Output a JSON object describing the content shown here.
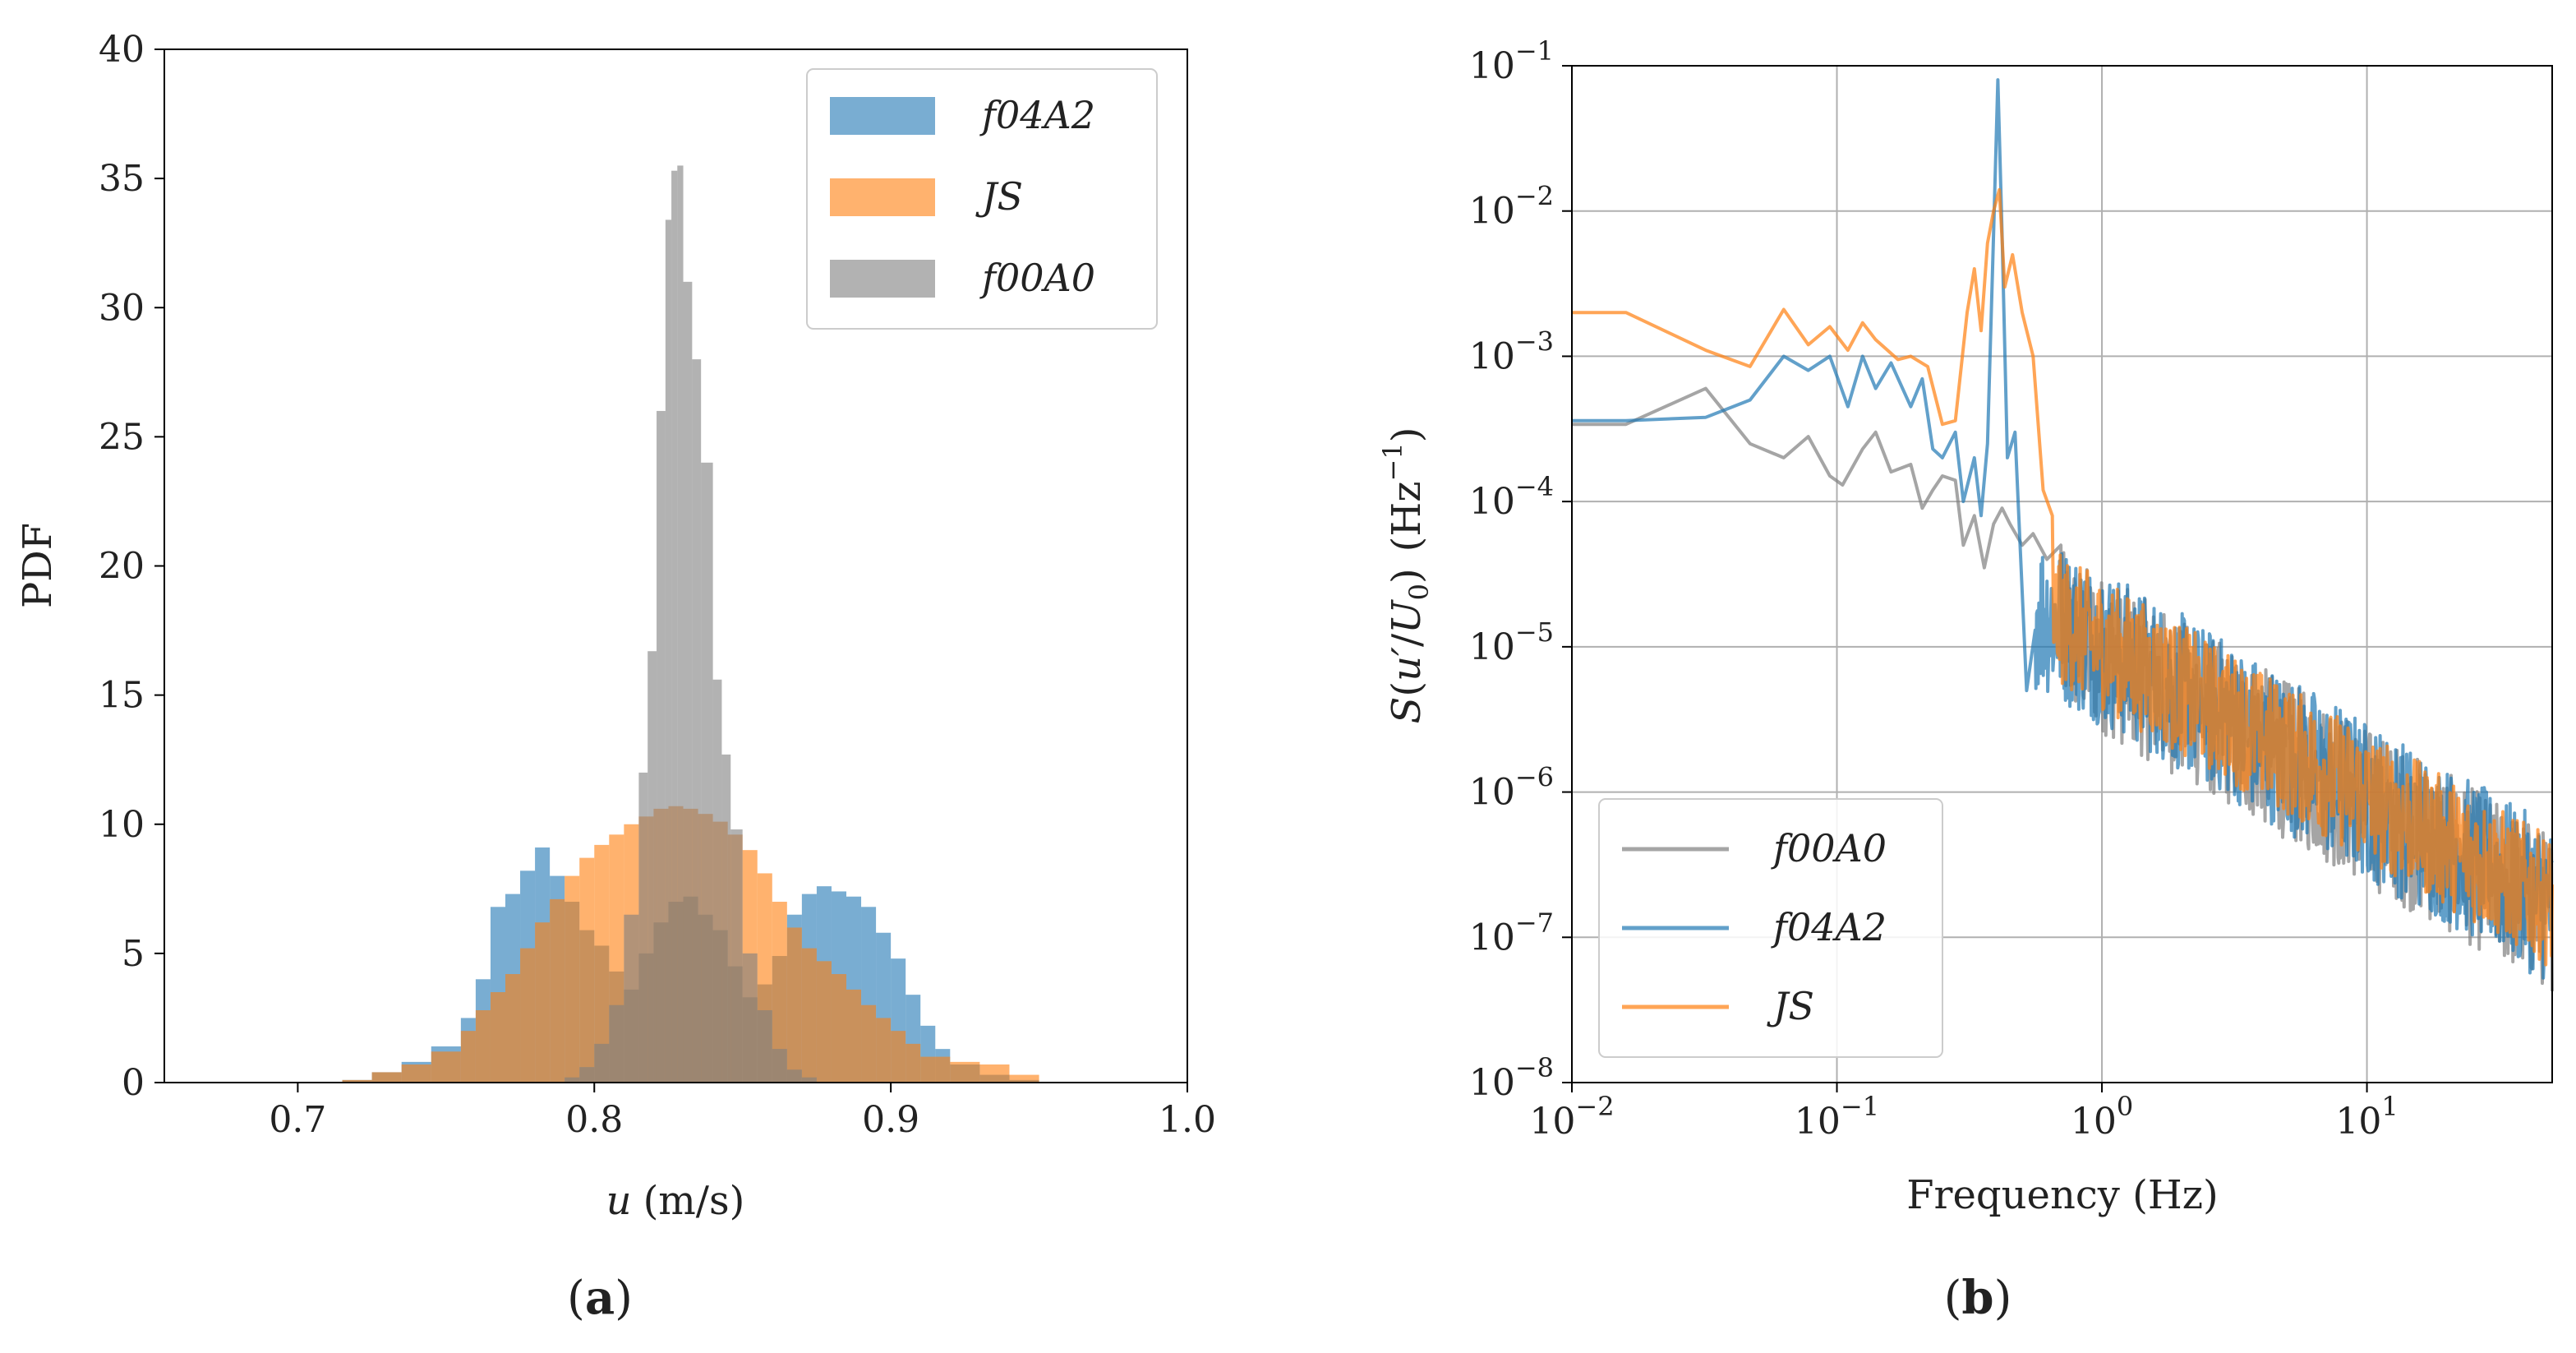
{
  "chart_data": [
    {
      "panel_label": "a",
      "type": "histogram",
      "xlabel_var": "u",
      "xlabel_unit": "(m/s)",
      "ylabel": "PDF",
      "xlim": [
        0.655,
        1.0
      ],
      "ylim": [
        0,
        40
      ],
      "xticks": [
        {
          "v": 0.7,
          "label": "0.7"
        },
        {
          "v": 0.8,
          "label": "0.8"
        },
        {
          "v": 0.9,
          "label": "0.9"
        },
        {
          "v": 1.0,
          "label": "1.0"
        }
      ],
      "yticks": [
        {
          "v": 0,
          "label": "0"
        },
        {
          "v": 5,
          "label": "5"
        },
        {
          "v": 10,
          "label": "10"
        },
        {
          "v": 15,
          "label": "15"
        },
        {
          "v": 20,
          "label": "20"
        },
        {
          "v": 25,
          "label": "25"
        },
        {
          "v": 30,
          "label": "30"
        },
        {
          "v": 35,
          "label": "35"
        },
        {
          "v": 40,
          "label": "40"
        }
      ],
      "legend_position": "top-right",
      "series": [
        {
          "name": "f04A2",
          "color": "#1f77b4",
          "opacity": 0.6,
          "bins": [
            [
              0.715,
              0.1
            ],
            [
              0.725,
              0.4
            ],
            [
              0.735,
              0.8
            ],
            [
              0.745,
              1.4
            ],
            [
              0.755,
              2.5
            ],
            [
              0.76,
              4.0
            ],
            [
              0.765,
              6.8
            ],
            [
              0.77,
              7.3
            ],
            [
              0.775,
              8.2
            ],
            [
              0.78,
              9.1
            ],
            [
              0.785,
              8.0
            ],
            [
              0.79,
              7.0
            ],
            [
              0.795,
              5.9
            ],
            [
              0.8,
              5.3
            ],
            [
              0.805,
              4.3
            ],
            [
              0.81,
              3.6
            ],
            [
              0.815,
              5.0
            ],
            [
              0.82,
              6.2
            ],
            [
              0.825,
              7.0
            ],
            [
              0.83,
              7.2
            ],
            [
              0.835,
              6.5
            ],
            [
              0.84,
              5.9
            ],
            [
              0.845,
              4.5
            ],
            [
              0.85,
              3.3
            ],
            [
              0.855,
              3.8
            ],
            [
              0.86,
              4.9
            ],
            [
              0.865,
              6.5
            ],
            [
              0.87,
              7.3
            ],
            [
              0.875,
              7.6
            ],
            [
              0.88,
              7.4
            ],
            [
              0.885,
              7.2
            ],
            [
              0.89,
              6.8
            ],
            [
              0.895,
              5.8
            ],
            [
              0.9,
              4.8
            ],
            [
              0.905,
              3.4
            ],
            [
              0.91,
              2.2
            ],
            [
              0.915,
              1.3
            ],
            [
              0.92,
              0.7
            ],
            [
              0.93,
              0.3
            ],
            [
              0.94,
              0.1
            ]
          ]
        },
        {
          "name": "JS",
          "color": "#ff7f0e",
          "opacity": 0.6,
          "bins": [
            [
              0.715,
              0.1
            ],
            [
              0.725,
              0.4
            ],
            [
              0.735,
              0.7
            ],
            [
              0.745,
              1.2
            ],
            [
              0.755,
              2.0
            ],
            [
              0.76,
              2.8
            ],
            [
              0.765,
              3.5
            ],
            [
              0.77,
              4.2
            ],
            [
              0.775,
              5.2
            ],
            [
              0.78,
              6.2
            ],
            [
              0.785,
              7.1
            ],
            [
              0.79,
              8.0
            ],
            [
              0.795,
              8.7
            ],
            [
              0.8,
              9.2
            ],
            [
              0.805,
              9.6
            ],
            [
              0.81,
              10.0
            ],
            [
              0.815,
              10.3
            ],
            [
              0.82,
              10.6
            ],
            [
              0.825,
              10.7
            ],
            [
              0.83,
              10.6
            ],
            [
              0.835,
              10.4
            ],
            [
              0.84,
              10.1
            ],
            [
              0.845,
              9.6
            ],
            [
              0.85,
              9.0
            ],
            [
              0.855,
              8.1
            ],
            [
              0.86,
              7.0
            ],
            [
              0.865,
              6.0
            ],
            [
              0.87,
              5.2
            ],
            [
              0.875,
              4.7
            ],
            [
              0.88,
              4.2
            ],
            [
              0.885,
              3.6
            ],
            [
              0.89,
              3.0
            ],
            [
              0.895,
              2.5
            ],
            [
              0.9,
              2.0
            ],
            [
              0.905,
              1.5
            ],
            [
              0.91,
              1.0
            ],
            [
              0.92,
              0.8
            ],
            [
              0.93,
              0.7
            ],
            [
              0.94,
              0.3
            ]
          ]
        },
        {
          "name": "f00A0",
          "color": "#7f7f7f",
          "opacity": 0.6,
          "bins": [
            [
              0.79,
              0.2
            ],
            [
              0.795,
              0.6
            ],
            [
              0.8,
              1.5
            ],
            [
              0.805,
              3.0
            ],
            [
              0.81,
              6.5
            ],
            [
              0.815,
              12.0
            ],
            [
              0.818,
              16.7
            ],
            [
              0.821,
              26.0
            ],
            [
              0.824,
              33.4
            ],
            [
              0.826,
              35.3
            ],
            [
              0.828,
              35.5
            ],
            [
              0.83,
              31.0
            ],
            [
              0.833,
              28.0
            ],
            [
              0.836,
              24.0
            ],
            [
              0.84,
              15.6
            ],
            [
              0.843,
              12.7
            ],
            [
              0.846,
              9.8
            ],
            [
              0.85,
              5.0
            ],
            [
              0.855,
              2.8
            ],
            [
              0.86,
              1.3
            ],
            [
              0.865,
              0.5
            ],
            [
              0.87,
              0.2
            ]
          ]
        }
      ]
    },
    {
      "panel_label": "b",
      "type": "line",
      "xscale": "log",
      "yscale": "log",
      "xlabel": "Frequency (Hz)",
      "ylabel": "S(u'/U0) (Hz^-1)",
      "xlim": [
        0.01,
        50
      ],
      "ylim": [
        1e-08,
        0.1
      ],
      "xticks": [
        {
          "v": 0.01,
          "base": "10",
          "exp": "−2"
        },
        {
          "v": 0.1,
          "base": "10",
          "exp": "−1"
        },
        {
          "v": 1,
          "base": "10",
          "exp": "0"
        },
        {
          "v": 10,
          "base": "10",
          "exp": "1"
        }
      ],
      "yticks": [
        {
          "v": 1e-08,
          "base": "10",
          "exp": "−8"
        },
        {
          "v": 1e-07,
          "base": "10",
          "exp": "−7"
        },
        {
          "v": 1e-06,
          "base": "10",
          "exp": "−6"
        },
        {
          "v": 1e-05,
          "base": "10",
          "exp": "−5"
        },
        {
          "v": 0.0001,
          "base": "10",
          "exp": "−4"
        },
        {
          "v": 0.001,
          "base": "10",
          "exp": "−3"
        },
        {
          "v": 0.01,
          "base": "10",
          "exp": "−2"
        },
        {
          "v": 0.1,
          "base": "10",
          "exp": "−1"
        }
      ],
      "grid": true,
      "legend_position": "bottom-left",
      "series": [
        {
          "name": "f00A0",
          "color": "#7f7f7f",
          "opacity": 0.7,
          "points": [
            [
              0.01,
              0.00034
            ],
            [
              0.016,
              0.00034
            ],
            [
              0.032,
              0.0006
            ],
            [
              0.047,
              0.00025
            ],
            [
              0.063,
              0.0002
            ],
            [
              0.078,
              0.00028
            ],
            [
              0.094,
              0.00015
            ],
            [
              0.105,
              0.00013
            ],
            [
              0.125,
              0.00023
            ],
            [
              0.14,
              0.0003
            ],
            [
              0.16,
              0.00016
            ],
            [
              0.19,
              0.00018
            ],
            [
              0.21,
              9e-05
            ],
            [
              0.23,
              0.00012
            ],
            [
              0.25,
              0.00015
            ],
            [
              0.28,
              0.00014
            ],
            [
              0.3,
              5e-05
            ],
            [
              0.33,
              8e-05
            ],
            [
              0.36,
              3.5e-05
            ],
            [
              0.39,
              7e-05
            ],
            [
              0.42,
              9e-05
            ],
            [
              0.45,
              7e-05
            ],
            [
              0.5,
              5e-05
            ],
            [
              0.55,
              6e-05
            ],
            [
              0.62,
              4e-05
            ],
            [
              0.7,
              5e-05
            ]
          ]
        },
        {
          "name": "f04A2",
          "color": "#1f77b4",
          "opacity": 0.7,
          "points": [
            [
              0.01,
              0.00036
            ],
            [
              0.016,
              0.00036
            ],
            [
              0.032,
              0.00038
            ],
            [
              0.047,
              0.0005
            ],
            [
              0.063,
              0.001
            ],
            [
              0.078,
              0.0008
            ],
            [
              0.094,
              0.001
            ],
            [
              0.11,
              0.00045
            ],
            [
              0.125,
              0.001
            ],
            [
              0.14,
              0.0006
            ],
            [
              0.16,
              0.0009
            ],
            [
              0.19,
              0.00045
            ],
            [
              0.21,
              0.0007
            ],
            [
              0.23,
              0.00023
            ],
            [
              0.25,
              0.0002
            ],
            [
              0.28,
              0.0003
            ],
            [
              0.3,
              0.0001
            ],
            [
              0.33,
              0.0002
            ],
            [
              0.35,
              8e-05
            ],
            [
              0.37,
              0.00025
            ],
            [
              0.39,
              0.007
            ],
            [
              0.405,
              0.08
            ],
            [
              0.42,
              0.007
            ],
            [
              0.44,
              0.0002
            ],
            [
              0.47,
              0.0003
            ],
            [
              0.52,
              5e-06
            ],
            [
              0.56,
              1.3e-05
            ]
          ]
        },
        {
          "name": "JS",
          "color": "#ff7f0e",
          "opacity": 0.7,
          "points": [
            [
              0.01,
              0.002
            ],
            [
              0.016,
              0.002
            ],
            [
              0.032,
              0.0011
            ],
            [
              0.047,
              0.00085
            ],
            [
              0.063,
              0.0021
            ],
            [
              0.078,
              0.0012
            ],
            [
              0.094,
              0.0016
            ],
            [
              0.11,
              0.0011
            ],
            [
              0.125,
              0.0017
            ],
            [
              0.14,
              0.0013
            ],
            [
              0.17,
              0.00095
            ],
            [
              0.19,
              0.001
            ],
            [
              0.22,
              0.00085
            ],
            [
              0.25,
              0.00034
            ],
            [
              0.28,
              0.00036
            ],
            [
              0.31,
              0.002
            ],
            [
              0.33,
              0.004
            ],
            [
              0.35,
              0.0015
            ],
            [
              0.37,
              0.006
            ],
            [
              0.39,
              0.01
            ],
            [
              0.41,
              0.014
            ],
            [
              0.43,
              0.003
            ],
            [
              0.46,
              0.005
            ],
            [
              0.5,
              0.002
            ],
            [
              0.55,
              0.001
            ],
            [
              0.6,
              0.00012
            ],
            [
              0.65,
              8e-05
            ]
          ]
        }
      ]
    }
  ]
}
